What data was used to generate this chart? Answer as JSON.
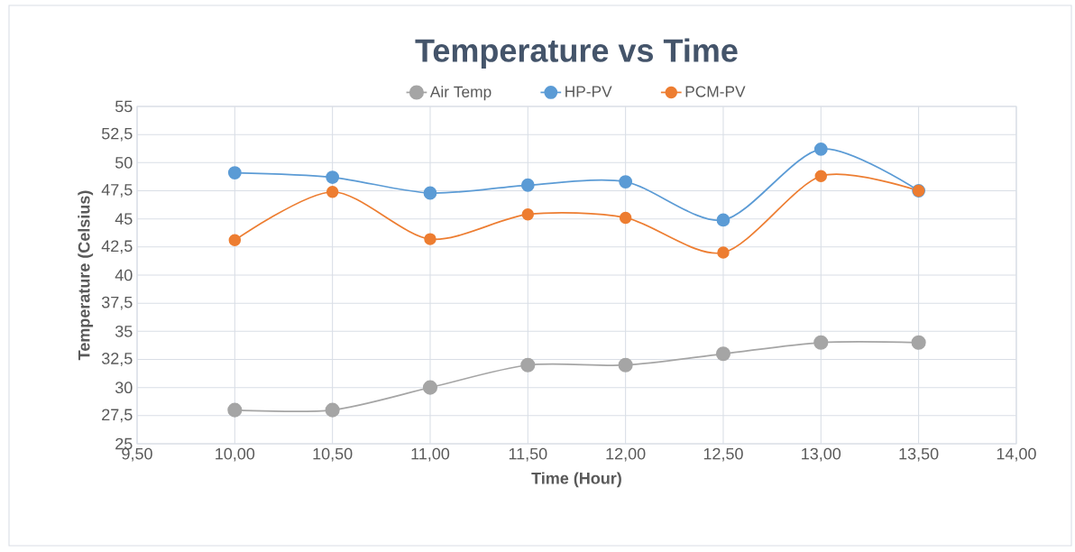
{
  "chart_data": {
    "type": "line",
    "title": "Temperature vs Time",
    "xlabel": "Time (Hour)",
    "ylabel": "Temperature (Celsius)",
    "x": [
      10,
      10.5,
      11,
      11.5,
      12,
      12.5,
      13,
      13.5
    ],
    "series": [
      {
        "name": "Air Temp",
        "color": "#a5a5a5",
        "values": [
          28,
          28,
          30,
          32,
          32,
          33,
          34,
          34
        ]
      },
      {
        "name": "HP-PV",
        "color": "#5b9bd5",
        "values": [
          49.1,
          48.7,
          47.3,
          48.0,
          48.3,
          44.9,
          51.2,
          47.5
        ]
      },
      {
        "name": "PCM-PV",
        "color": "#ed7d31",
        "values": [
          43.1,
          47.4,
          43.2,
          45.4,
          45.1,
          42.0,
          48.8,
          47.5
        ]
      }
    ],
    "xlim": [
      9.5,
      14
    ],
    "ylim": [
      25,
      55
    ],
    "xticks": [
      {
        "value": 9.5,
        "label": "9,50"
      },
      {
        "value": 10,
        "label": "10,00"
      },
      {
        "value": 10.5,
        "label": "10,50"
      },
      {
        "value": 11,
        "label": "11,00"
      },
      {
        "value": 11.5,
        "label": "11,50"
      },
      {
        "value": 12,
        "label": "12,00"
      },
      {
        "value": 12.5,
        "label": "12,50"
      },
      {
        "value": 13,
        "label": "13,00"
      },
      {
        "value": 13.5,
        "label": "13,50"
      },
      {
        "value": 14,
        "label": "14,00"
      }
    ],
    "yticks": [
      25,
      {
        "value": 27.5,
        "label": "27,5"
      },
      30,
      {
        "value": 32.5,
        "label": "32,5"
      },
      35,
      {
        "value": 37.5,
        "label": "37,5"
      },
      40,
      {
        "value": 42.5,
        "label": "42,5"
      },
      45,
      {
        "value": 47.5,
        "label": "47,5"
      },
      50,
      {
        "value": 52.5,
        "label": "52,5"
      },
      55
    ],
    "grid": true,
    "legend": "top",
    "marker": "circle",
    "line_style": "solid"
  }
}
